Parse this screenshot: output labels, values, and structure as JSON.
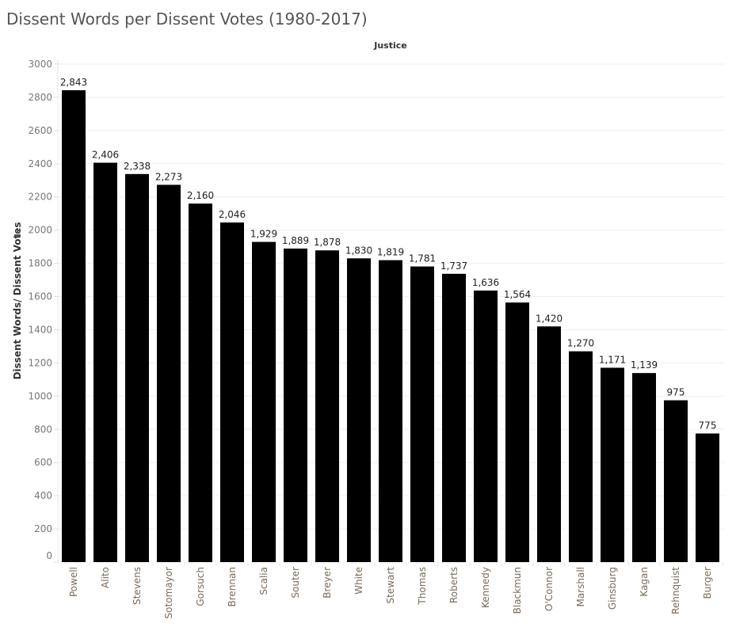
{
  "chart_data": {
    "type": "bar",
    "title": "Dissent Words per Dissent Votes (1980-2017)",
    "column_header": "Justice",
    "xlabel": "",
    "ylabel": "Dissent Words/ Dissent Votes",
    "ylim": [
      0,
      3000
    ],
    "yticks": [
      0,
      200,
      400,
      600,
      800,
      1000,
      1200,
      1400,
      1600,
      1800,
      2000,
      2200,
      2400,
      2600,
      2800,
      3000
    ],
    "grid": true,
    "bar_color": "#000000",
    "categories": [
      "Powell",
      "Alito",
      "Stevens",
      "Sotomayor",
      "Gorsuch",
      "Brennan",
      "Scalia",
      "Souter",
      "Breyer",
      "White",
      "Stewart",
      "Thomas",
      "Roberts",
      "Kennedy",
      "Blackmun",
      "O'Connor",
      "Marshall",
      "Ginsburg",
      "Kagan",
      "Rehnquist",
      "Burger"
    ],
    "values": [
      2843,
      2406,
      2338,
      2273,
      2160,
      2046,
      1929,
      1889,
      1878,
      1830,
      1819,
      1781,
      1737,
      1636,
      1564,
      1420,
      1270,
      1171,
      1139,
      975,
      775
    ],
    "value_labels": [
      "2,843",
      "2,406",
      "2,338",
      "2,273",
      "2,160",
      "2,046",
      "1,929",
      "1,889",
      "1,878",
      "1,830",
      "1,819",
      "1,781",
      "1,737",
      "1,636",
      "1,564",
      "1,420",
      "1,270",
      "1,171",
      "1,139",
      "975",
      "775"
    ]
  }
}
